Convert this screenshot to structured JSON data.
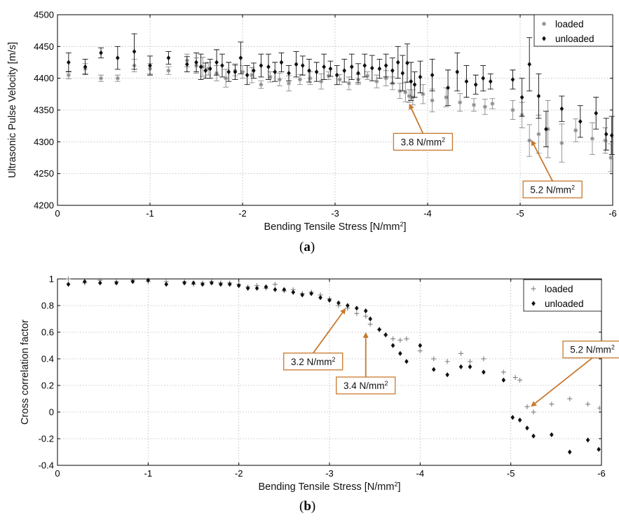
{
  "colors": {
    "loaded": "#8a8a8a",
    "unloaded": "#111111",
    "annotation": "#c8792e",
    "grid": "#b5b5b5"
  },
  "chart_data": [
    {
      "id": "a",
      "type": "scatter",
      "sublabel": "a",
      "xlabel": "Bending Tensile Stress [N/mm",
      "xlabel_sup": "2",
      "xlabel_end": "]",
      "ylabel": "Ultrasonic Pulse Velocity [m/s]",
      "xlim": [
        0,
        -6
      ],
      "ylim": [
        4200,
        4500
      ],
      "xticks": [
        0,
        -1,
        -2,
        -3,
        -4,
        -5,
        -6
      ],
      "xtick_labels": [
        "0",
        "-1",
        "-2",
        "-3",
        "-4",
        "-5",
        "-6"
      ],
      "yticks": [
        4200,
        4250,
        4300,
        4350,
        4400,
        4450,
        4500
      ],
      "ytick_labels": [
        "4200",
        "4250",
        "4300",
        "4350",
        "4400",
        "4450",
        "4500"
      ],
      "grid": true,
      "legend_position": "top-right",
      "error_bars": true,
      "series": [
        {
          "name": "loaded",
          "marker": "asterisk",
          "x": [
            -0.12,
            -0.3,
            -0.47,
            -0.65,
            -0.83,
            -1.0,
            -1.2,
            -1.4,
            -1.5,
            -1.57,
            -1.63,
            -1.72,
            -1.82,
            -1.92,
            -2.0,
            -2.1,
            -2.2,
            -2.3,
            -2.4,
            -2.5,
            -2.62,
            -2.73,
            -2.85,
            -2.93,
            -3.05,
            -3.15,
            -3.25,
            -3.35,
            -3.45,
            -3.55,
            -3.62,
            -3.7,
            -3.76,
            -3.8,
            -3.84,
            -3.95,
            -4.05,
            -4.2,
            -4.35,
            -4.5,
            -4.62,
            -4.7,
            -4.92,
            -5.02,
            -5.1,
            -5.2,
            -5.3,
            -5.45,
            -5.6,
            -5.78,
            -5.92,
            -5.98
          ],
          "y": [
            4405,
            4415,
            4400,
            4400,
            4420,
            4415,
            4412,
            4428,
            4420,
            4418,
            4415,
            4408,
            4400,
            4412,
            4410,
            4405,
            4390,
            4402,
            4398,
            4392,
            4398,
            4400,
            4395,
            4404,
            4398,
            4392,
            4398,
            4404,
            4395,
            4400,
            4392,
            4380,
            4378,
            4372,
            4370,
            4375,
            4365,
            4370,
            4362,
            4358,
            4355,
            4360,
            4350,
            4342,
            4302,
            4312,
            4320,
            4298,
            4318,
            4305,
            4302,
            4275
          ],
          "err": [
            6,
            8,
            5,
            5,
            10,
            8,
            6,
            10,
            12,
            15,
            10,
            12,
            14,
            8,
            10,
            12,
            6,
            8,
            10,
            12,
            8,
            10,
            12,
            6,
            8,
            10,
            8,
            6,
            10,
            12,
            10,
            12,
            15,
            10,
            12,
            15,
            18,
            15,
            14,
            10,
            12,
            8,
            15,
            20,
            25,
            30,
            45,
            30,
            18,
            25,
            20,
            22
          ]
        },
        {
          "name": "unloaded",
          "marker": "diamond",
          "x": [
            -0.12,
            -0.3,
            -0.47,
            -0.65,
            -0.83,
            -1.0,
            -1.2,
            -1.4,
            -1.5,
            -1.55,
            -1.6,
            -1.65,
            -1.72,
            -1.78,
            -1.85,
            -1.92,
            -1.98,
            -2.05,
            -2.12,
            -2.2,
            -2.28,
            -2.35,
            -2.42,
            -2.5,
            -2.58,
            -2.65,
            -2.72,
            -2.8,
            -2.88,
            -2.95,
            -3.02,
            -3.1,
            -3.18,
            -3.25,
            -3.32,
            -3.4,
            -3.48,
            -3.55,
            -3.62,
            -3.68,
            -3.73,
            -3.78,
            -3.82,
            -3.86,
            -3.92,
            -4.05,
            -4.22,
            -4.32,
            -4.42,
            -4.52,
            -4.6,
            -4.68,
            -4.92,
            -5.02,
            -5.1,
            -5.2,
            -5.28,
            -5.45,
            -5.65,
            -5.82,
            -5.93,
            -5.99
          ],
          "y": [
            4425,
            4418,
            4440,
            4432,
            4442,
            4420,
            4432,
            4422,
            4425,
            4418,
            4412,
            4415,
            4425,
            4420,
            4410,
            4410,
            4432,
            4405,
            4412,
            4420,
            4418,
            4410,
            4425,
            4408,
            4422,
            4420,
            4412,
            4410,
            4418,
            4415,
            4405,
            4412,
            4418,
            4408,
            4420,
            4416,
            4415,
            4420,
            4412,
            4425,
            4408,
            4424,
            4395,
            4390,
            4402,
            4405,
            4385,
            4410,
            4395,
            4390,
            4400,
            4395,
            4398,
            4370,
            4422,
            4372,
            4320,
            4352,
            4332,
            4345,
            4312,
            4310
          ],
          "err": [
            15,
            12,
            8,
            18,
            28,
            15,
            10,
            12,
            15,
            20,
            12,
            15,
            20,
            18,
            15,
            12,
            25,
            15,
            12,
            18,
            20,
            15,
            15,
            12,
            20,
            15,
            18,
            15,
            20,
            12,
            15,
            18,
            20,
            15,
            18,
            20,
            15,
            18,
            20,
            25,
            28,
            30,
            30,
            20,
            25,
            25,
            28,
            30,
            25,
            15,
            20,
            12,
            15,
            30,
            42,
            35,
            28,
            20,
            25,
            25,
            25,
            30
          ]
        }
      ],
      "annotations": [
        {
          "text": "3.8 N/mm",
          "sup": "2",
          "target_x": -3.8,
          "target_y": 4360,
          "box_x": -3.95,
          "box_y": 4300
        },
        {
          "text": "5.2 N/mm",
          "sup": "2",
          "target_x": -5.12,
          "target_y": 4303,
          "box_x": -5.35,
          "box_y": 4225
        }
      ]
    },
    {
      "id": "b",
      "type": "scatter",
      "sublabel": "b",
      "xlabel": "Bending Tensile Stress [N/mm",
      "xlabel_sup": "2",
      "xlabel_end": "]",
      "ylabel": "Cross correlation factor",
      "xlim": [
        0,
        -6
      ],
      "ylim": [
        -0.4,
        1
      ],
      "xticks": [
        0,
        -1,
        -2,
        -3,
        -4,
        -5,
        -6
      ],
      "xtick_labels": [
        "0",
        "-1",
        "-2",
        "-3",
        "-4",
        "-5",
        "-6"
      ],
      "yticks": [
        -0.4,
        -0.2,
        0,
        0.2,
        0.4,
        0.6,
        0.8,
        1
      ],
      "ytick_labels": [
        "-0.4",
        "-0.2",
        "0",
        "0.2",
        "0.4",
        "0.6",
        "0.8",
        "1"
      ],
      "grid": true,
      "legend_position": "top-right",
      "error_bars": false,
      "series": [
        {
          "name": "loaded",
          "marker": "plus",
          "x": [
            -0.12,
            -0.3,
            -0.47,
            -0.65,
            -0.83,
            -1.0,
            -1.2,
            -1.4,
            -1.5,
            -1.6,
            -1.7,
            -1.8,
            -1.9,
            -2.0,
            -2.1,
            -2.2,
            -2.3,
            -2.4,
            -2.5,
            -2.6,
            -2.7,
            -2.8,
            -2.9,
            -3.0,
            -3.1,
            -3.2,
            -3.3,
            -3.4,
            -3.45,
            -3.55,
            -3.62,
            -3.7,
            -3.78,
            -3.85,
            -4.0,
            -4.15,
            -4.3,
            -4.45,
            -4.55,
            -4.7,
            -4.92,
            -5.05,
            -5.1,
            -5.18,
            -5.25,
            -5.45,
            -5.65,
            -5.85,
            -5.98
          ],
          "y": [
            1.0,
            0.97,
            0.99,
            0.98,
            0.99,
            0.98,
            0.98,
            0.98,
            0.96,
            0.97,
            0.98,
            0.97,
            0.97,
            0.96,
            0.94,
            0.95,
            0.93,
            0.96,
            0.91,
            0.92,
            0.89,
            0.9,
            0.88,
            0.85,
            0.8,
            0.78,
            0.74,
            0.72,
            0.66,
            0.62,
            0.58,
            0.55,
            0.54,
            0.55,
            0.46,
            0.4,
            0.38,
            0.44,
            0.38,
            0.4,
            0.3,
            0.26,
            0.24,
            0.04,
            0.0,
            0.06,
            0.1,
            0.06,
            0.03
          ]
        },
        {
          "name": "unloaded",
          "marker": "diamond",
          "x": [
            -0.12,
            -0.3,
            -0.47,
            -0.65,
            -0.83,
            -1.0,
            -1.2,
            -1.4,
            -1.5,
            -1.6,
            -1.7,
            -1.8,
            -1.9,
            -2.0,
            -2.1,
            -2.2,
            -2.3,
            -2.4,
            -2.5,
            -2.6,
            -2.7,
            -2.8,
            -2.9,
            -3.0,
            -3.1,
            -3.2,
            -3.3,
            -3.4,
            -3.45,
            -3.55,
            -3.62,
            -3.7,
            -3.78,
            -3.85,
            -4.0,
            -4.15,
            -4.3,
            -4.45,
            -4.55,
            -4.7,
            -4.92,
            -5.02,
            -5.1,
            -5.18,
            -5.25,
            -5.45,
            -5.65,
            -5.85,
            -5.97
          ],
          "y": [
            0.96,
            0.98,
            0.97,
            0.97,
            0.98,
            0.99,
            0.96,
            0.97,
            0.97,
            0.96,
            0.97,
            0.96,
            0.96,
            0.95,
            0.93,
            0.93,
            0.94,
            0.92,
            0.92,
            0.9,
            0.88,
            0.89,
            0.86,
            0.84,
            0.82,
            0.8,
            0.78,
            0.76,
            0.7,
            0.62,
            0.58,
            0.5,
            0.44,
            0.38,
            0.5,
            0.32,
            0.28,
            0.34,
            0.34,
            0.3,
            0.24,
            -0.04,
            -0.06,
            -0.12,
            -0.18,
            -0.17,
            -0.3,
            -0.21,
            -0.28
          ]
        }
      ],
      "annotations": [
        {
          "text": "3.2 N/mm",
          "sup": "2",
          "target_x": -3.18,
          "target_y": 0.78,
          "box_x": -2.82,
          "box_y": 0.38
        },
        {
          "text": "3.4 N/mm",
          "sup": "2",
          "target_x": -3.4,
          "target_y": 0.6,
          "box_x": -3.4,
          "box_y": 0.2
        },
        {
          "text": "5.2 N/mm",
          "sup": "2",
          "target_x": -5.22,
          "target_y": 0.04,
          "box_x": -5.9,
          "box_y": 0.47
        }
      ]
    }
  ]
}
